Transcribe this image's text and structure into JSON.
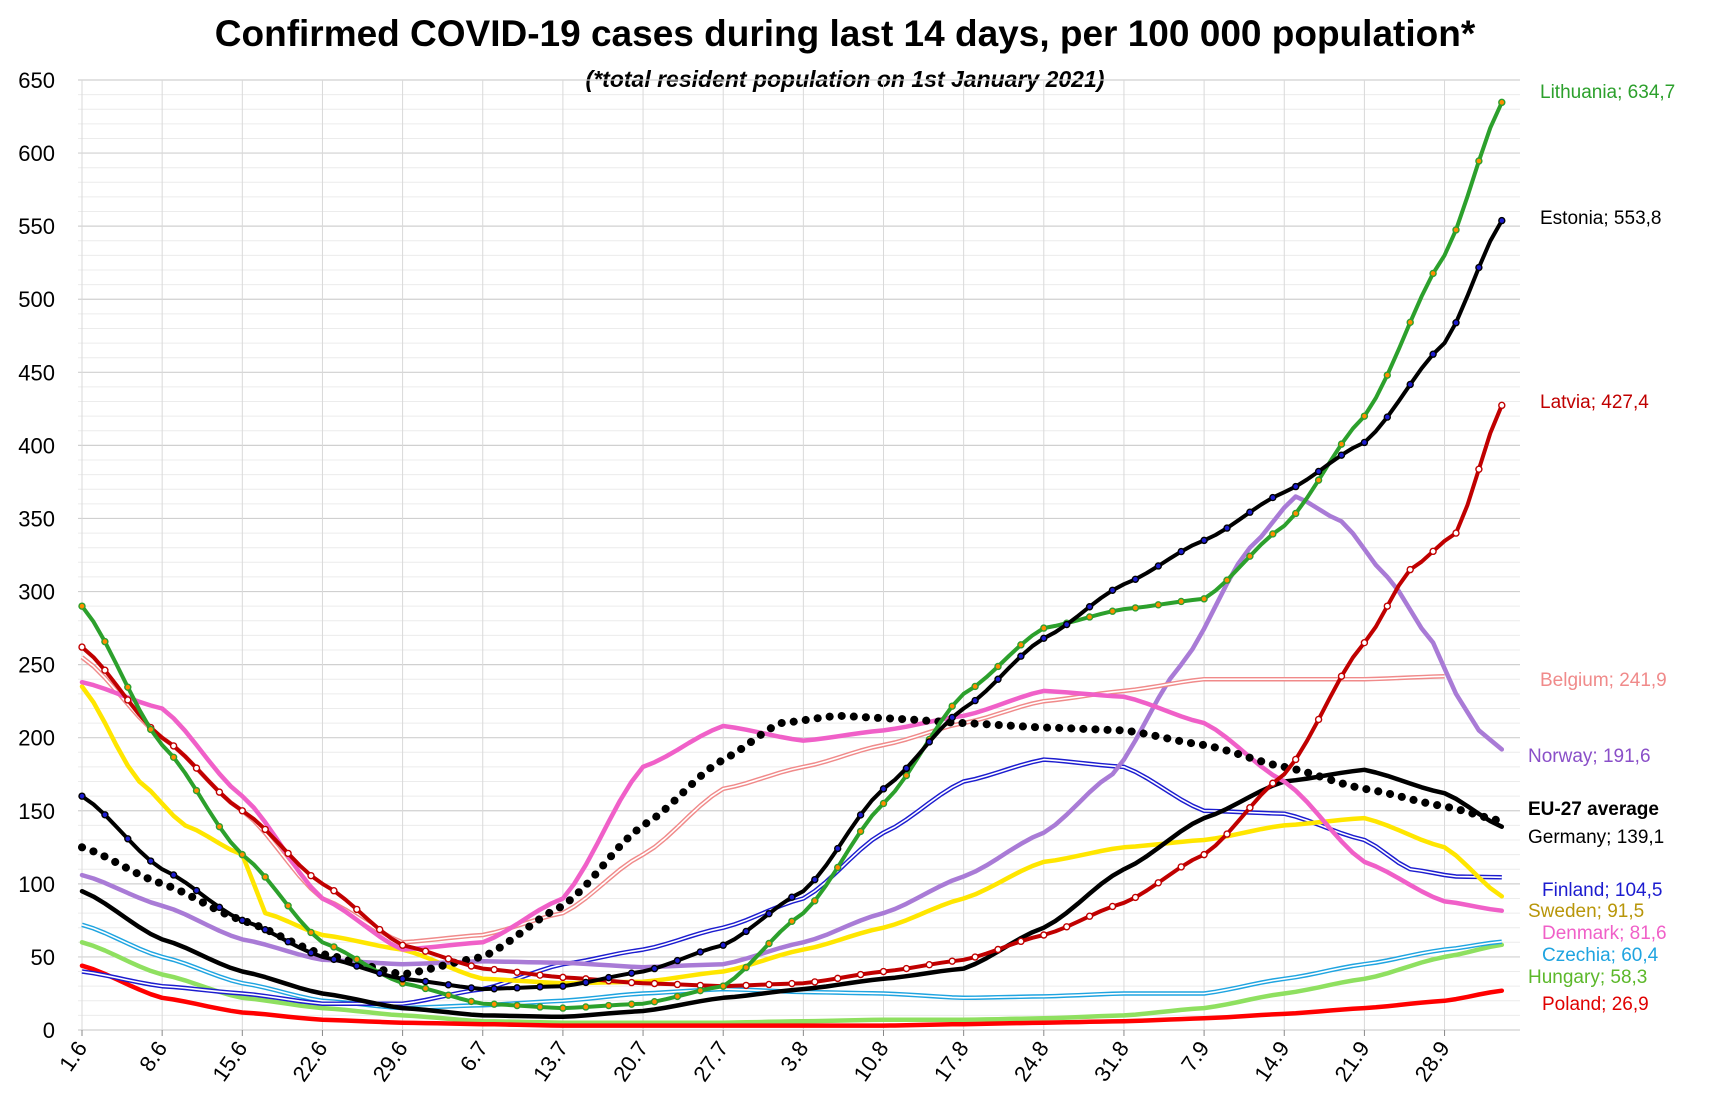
{
  "chart_data": {
    "type": "line",
    "title": "Confirmed COVID-19 cases during last 14 days, per 100 000 population*",
    "subtitle": "(*total resident population on 1st January 2021)",
    "xlabel": "",
    "ylabel": "",
    "ylim": [
      0,
      650
    ],
    "yticks": [
      "0",
      "50",
      "100",
      "150",
      "200",
      "250",
      "300",
      "350",
      "400",
      "450",
      "500",
      "550",
      "600",
      "650"
    ],
    "x_ticks": [
      "1.6",
      "8.6",
      "15.6",
      "22.6",
      "29.6",
      "6.7",
      "13.7",
      "20.7",
      "27.7",
      "3.8",
      "10.8",
      "17.8",
      "24.8",
      "31.8",
      "7.9",
      "14.9",
      "21.9",
      "28.9"
    ],
    "days": 120,
    "series": [
      {
        "name": "Belgium",
        "label": "Belgium; 241,9",
        "color": "#f08a8a",
        "style": "double",
        "points": [
          [
            0,
            255
          ],
          [
            7,
            200
          ],
          [
            14,
            150
          ],
          [
            21,
            90
          ],
          [
            28,
            60
          ],
          [
            35,
            65
          ],
          [
            42,
            80
          ],
          [
            49,
            120
          ],
          [
            56,
            165
          ],
          [
            63,
            180
          ],
          [
            70,
            195
          ],
          [
            77,
            210
          ],
          [
            84,
            225
          ],
          [
            91,
            232
          ],
          [
            98,
            240
          ],
          [
            105,
            240
          ],
          [
            112,
            240
          ],
          [
            119,
            242
          ]
        ]
      },
      {
        "name": "Norway",
        "label": "Norway; 191,6",
        "color": "#a97bd6",
        "style": "thick",
        "points": [
          [
            0,
            106
          ],
          [
            7,
            85
          ],
          [
            14,
            62
          ],
          [
            21,
            48
          ],
          [
            28,
            45
          ],
          [
            35,
            47
          ],
          [
            42,
            46
          ],
          [
            49,
            43
          ],
          [
            56,
            45
          ],
          [
            63,
            60
          ],
          [
            70,
            80
          ],
          [
            77,
            105
          ],
          [
            84,
            135
          ],
          [
            90,
            175
          ],
          [
            96,
            250
          ],
          [
            102,
            330
          ],
          [
            106,
            365
          ],
          [
            110,
            348
          ],
          [
            114,
            310
          ],
          [
            118,
            265
          ],
          [
            120,
            230
          ],
          [
            122,
            205
          ],
          [
            124,
            192
          ]
        ]
      },
      {
        "name": "Lithuania",
        "label": "Lithuania; 634,7",
        "color": "#2ca02c",
        "style": "markers",
        "marker": "#ff8c00",
        "points": [
          [
            0,
            290
          ],
          [
            7,
            195
          ],
          [
            14,
            120
          ],
          [
            21,
            60
          ],
          [
            28,
            32
          ],
          [
            35,
            18
          ],
          [
            42,
            15
          ],
          [
            49,
            18
          ],
          [
            56,
            30
          ],
          [
            63,
            80
          ],
          [
            70,
            155
          ],
          [
            77,
            230
          ],
          [
            84,
            275
          ],
          [
            91,
            288
          ],
          [
            98,
            295
          ],
          [
            105,
            345
          ],
          [
            112,
            420
          ],
          [
            119,
            530
          ],
          [
            124,
            634.7
          ]
        ]
      },
      {
        "name": "Estonia",
        "label": "Estonia; 553,8",
        "color": "#000000",
        "style": "markers",
        "marker": "#1c1ccf",
        "points": [
          [
            0,
            160
          ],
          [
            7,
            110
          ],
          [
            14,
            75
          ],
          [
            21,
            50
          ],
          [
            28,
            35
          ],
          [
            35,
            28
          ],
          [
            42,
            30
          ],
          [
            49,
            40
          ],
          [
            56,
            58
          ],
          [
            63,
            95
          ],
          [
            70,
            165
          ],
          [
            77,
            220
          ],
          [
            84,
            268
          ],
          [
            91,
            305
          ],
          [
            98,
            335
          ],
          [
            105,
            368
          ],
          [
            112,
            402
          ],
          [
            119,
            470
          ],
          [
            124,
            553.8
          ]
        ]
      },
      {
        "name": "Latvia",
        "label": "Latvia; 427,4",
        "color": "#c00000",
        "style": "markers",
        "marker": "#ffffff",
        "points": [
          [
            0,
            262
          ],
          [
            7,
            200
          ],
          [
            14,
            150
          ],
          [
            21,
            100
          ],
          [
            28,
            58
          ],
          [
            35,
            42
          ],
          [
            42,
            36
          ],
          [
            49,
            32
          ],
          [
            56,
            30
          ],
          [
            63,
            32
          ],
          [
            70,
            40
          ],
          [
            77,
            48
          ],
          [
            84,
            65
          ],
          [
            91,
            87
          ],
          [
            98,
            120
          ],
          [
            105,
            175
          ],
          [
            112,
            265
          ],
          [
            116,
            315
          ],
          [
            120,
            340
          ],
          [
            124,
            427.4
          ]
        ]
      },
      {
        "name": "EU-27 average",
        "label": "EU-27 average",
        "color": "#000000",
        "style": "dotted",
        "points": [
          [
            0,
            125
          ],
          [
            7,
            100
          ],
          [
            14,
            75
          ],
          [
            21,
            52
          ],
          [
            28,
            38
          ],
          [
            35,
            50
          ],
          [
            42,
            85
          ],
          [
            49,
            140
          ],
          [
            56,
            185
          ],
          [
            61,
            210
          ],
          [
            66,
            215
          ],
          [
            71,
            213
          ],
          [
            77,
            210
          ],
          [
            84,
            207
          ],
          [
            91,
            205
          ],
          [
            98,
            195
          ],
          [
            105,
            180
          ],
          [
            112,
            165
          ],
          [
            119,
            153
          ],
          [
            124,
            143
          ]
        ]
      },
      {
        "name": "Germany",
        "label": "Germany; 139,1",
        "color": "#000000",
        "style": "thick",
        "points": [
          [
            0,
            95
          ],
          [
            7,
            62
          ],
          [
            14,
            40
          ],
          [
            21,
            25
          ],
          [
            28,
            15
          ],
          [
            35,
            10
          ],
          [
            42,
            9
          ],
          [
            49,
            13
          ],
          [
            56,
            22
          ],
          [
            63,
            28
          ],
          [
            70,
            35
          ],
          [
            77,
            42
          ],
          [
            84,
            70
          ],
          [
            91,
            110
          ],
          [
            98,
            145
          ],
          [
            105,
            170
          ],
          [
            112,
            178
          ],
          [
            119,
            162
          ],
          [
            124,
            139.1
          ]
        ]
      },
      {
        "name": "Finland",
        "label": "Finland; 104,5",
        "color": "#1c1ccf",
        "style": "double",
        "points": [
          [
            0,
            40
          ],
          [
            7,
            30
          ],
          [
            14,
            25
          ],
          [
            21,
            18
          ],
          [
            28,
            18
          ],
          [
            35,
            28
          ],
          [
            42,
            45
          ],
          [
            49,
            55
          ],
          [
            56,
            70
          ],
          [
            63,
            90
          ],
          [
            70,
            135
          ],
          [
            77,
            170
          ],
          [
            84,
            185
          ],
          [
            91,
            180
          ],
          [
            98,
            150
          ],
          [
            105,
            148
          ],
          [
            112,
            130
          ],
          [
            116,
            110
          ],
          [
            120,
            105
          ],
          [
            124,
            104.5
          ]
        ]
      },
      {
        "name": "Sweden",
        "label": "Sweden; 91,5",
        "color": "#ffe600",
        "style": "thick",
        "points": [
          [
            0,
            235
          ],
          [
            5,
            170
          ],
          [
            9,
            140
          ],
          [
            14,
            120
          ],
          [
            16,
            80
          ],
          [
            21,
            65
          ],
          [
            28,
            55
          ],
          [
            35,
            35
          ],
          [
            42,
            32
          ],
          [
            49,
            33
          ],
          [
            56,
            40
          ],
          [
            63,
            55
          ],
          [
            70,
            70
          ],
          [
            77,
            90
          ],
          [
            84,
            115
          ],
          [
            91,
            125
          ],
          [
            98,
            130
          ],
          [
            105,
            140
          ],
          [
            112,
            145
          ],
          [
            119,
            125
          ],
          [
            124,
            91.5
          ]
        ]
      },
      {
        "name": "Denmark",
        "label": "Denmark; 81,6",
        "color": "#f060c8",
        "style": "thick",
        "points": [
          [
            0,
            238
          ],
          [
            7,
            220
          ],
          [
            14,
            160
          ],
          [
            21,
            90
          ],
          [
            28,
            55
          ],
          [
            35,
            60
          ],
          [
            42,
            90
          ],
          [
            49,
            180
          ],
          [
            56,
            208
          ],
          [
            63,
            198
          ],
          [
            70,
            205
          ],
          [
            77,
            215
          ],
          [
            84,
            232
          ],
          [
            91,
            228
          ],
          [
            98,
            210
          ],
          [
            105,
            170
          ],
          [
            112,
            115
          ],
          [
            119,
            88
          ],
          [
            124,
            81.6
          ]
        ]
      },
      {
        "name": "Czechia",
        "label": "Czechia; 60,4",
        "color": "#1fa4e0",
        "style": "double",
        "points": [
          [
            0,
            72
          ],
          [
            7,
            50
          ],
          [
            14,
            32
          ],
          [
            21,
            20
          ],
          [
            28,
            15
          ],
          [
            35,
            17
          ],
          [
            42,
            20
          ],
          [
            49,
            25
          ],
          [
            56,
            28
          ],
          [
            63,
            26
          ],
          [
            70,
            25
          ],
          [
            77,
            22
          ],
          [
            84,
            23
          ],
          [
            91,
            25
          ],
          [
            98,
            25
          ],
          [
            105,
            35
          ],
          [
            112,
            45
          ],
          [
            119,
            55
          ],
          [
            124,
            60.4
          ]
        ]
      },
      {
        "name": "Hungary",
        "label": "Hungary; 58,3",
        "color": "#8fe060",
        "style": "thick",
        "points": [
          [
            0,
            60
          ],
          [
            7,
            38
          ],
          [
            14,
            22
          ],
          [
            21,
            15
          ],
          [
            28,
            10
          ],
          [
            35,
            6
          ],
          [
            42,
            5
          ],
          [
            49,
            5
          ],
          [
            56,
            5
          ],
          [
            63,
            6
          ],
          [
            70,
            7
          ],
          [
            77,
            7
          ],
          [
            84,
            8
          ],
          [
            91,
            10
          ],
          [
            98,
            15
          ],
          [
            105,
            25
          ],
          [
            112,
            35
          ],
          [
            119,
            50
          ],
          [
            124,
            58.3
          ]
        ]
      },
      {
        "name": "Poland",
        "label": "Poland; 26,9",
        "color": "#ff0000",
        "style": "thick",
        "points": [
          [
            0,
            44
          ],
          [
            7,
            22
          ],
          [
            14,
            12
          ],
          [
            21,
            7
          ],
          [
            28,
            5
          ],
          [
            35,
            4
          ],
          [
            42,
            3
          ],
          [
            49,
            3
          ],
          [
            56,
            3
          ],
          [
            63,
            3
          ],
          [
            70,
            3
          ],
          [
            77,
            4
          ],
          [
            84,
            5
          ],
          [
            91,
            6
          ],
          [
            98,
            8
          ],
          [
            105,
            11
          ],
          [
            112,
            15
          ],
          [
            119,
            20
          ],
          [
            124,
            26.9
          ]
        ]
      }
    ],
    "labels_text": [
      "Lithuania; 634,7",
      "Estonia; 553,8",
      "Latvia; 427,4",
      "Belgium; 241,9",
      "Norway; 191,6",
      "EU-27 average",
      "Germany; 139,1",
      "Finland; 104,5",
      "Sweden; 91,5",
      "Denmark; 81,6",
      "Czechia; 60,4",
      "Hungary; 58,3",
      "Poland; 26,9"
    ],
    "label_colors": [
      "#2ca02c",
      "#000000",
      "#c00000",
      "#f08a8a",
      "#8a4fc8",
      "#000000",
      "#000000",
      "#1c1ccf",
      "#b8960a",
      "#f060c8",
      "#1fa4e0",
      "#5cb82a",
      "#e00000"
    ]
  }
}
